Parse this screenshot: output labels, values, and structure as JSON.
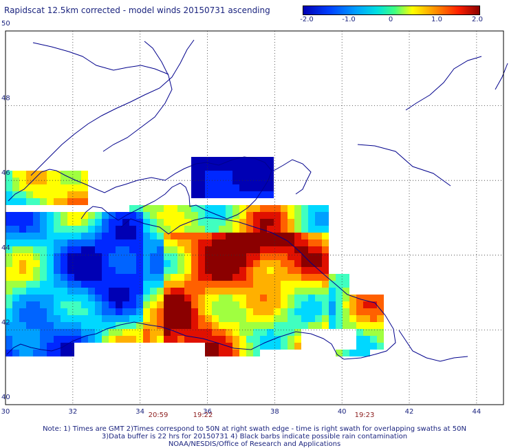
{
  "title": "Rapidscat 12.5km corrected - model winds 20150731 ascending",
  "colorbar": {
    "labels": [
      "-2.0",
      "-1.0",
      "0",
      "1.0",
      "2.0"
    ],
    "range": [
      -2.0,
      2.0
    ]
  },
  "map": {
    "lon_range": [
      30,
      44.8
    ],
    "lat_range": [
      40,
      50
    ],
    "x_ticks": [
      "30",
      "32",
      "34",
      "36",
      "38",
      "40",
      "42",
      "44"
    ],
    "y_ticks": [
      "40",
      "42",
      "44",
      "46",
      "48",
      "50"
    ],
    "grid": "dotted",
    "coastline_color": "#00008b"
  },
  "swath_times": [
    "20:59",
    "19:22",
    "19:23"
  ],
  "notes": [
    "Note: 1) Times are GMT 2)Times correspond to 50N at right swath edge - time is right swath for overlapping swaths at 50N",
    "3)Data buffer is 22 hrs for 20150731 4) Black barbs indicate possible rain contamination",
    "NOAA/NESDIS/Office of Research and Applications"
  ]
}
